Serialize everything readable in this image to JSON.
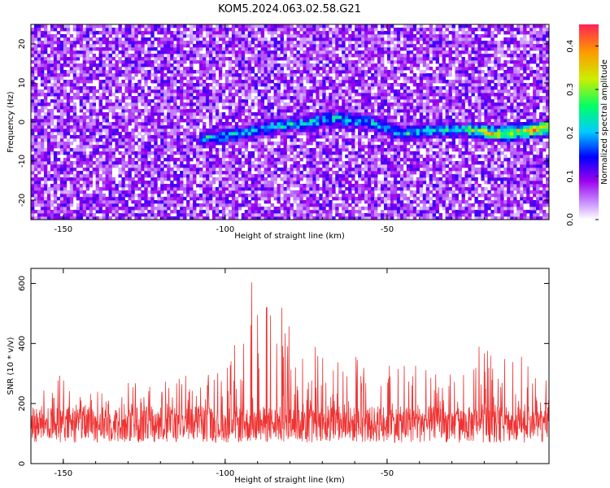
{
  "title": "KOM5.2024.063.02.58.G21",
  "chart_data": [
    {
      "type": "heatmap",
      "xlabel": "Height of straight line (km)",
      "ylabel": "Frequency (Hz)",
      "xlim": [
        -160,
        0
      ],
      "ylim": [
        -25,
        25
      ],
      "x_ticks": [
        -150,
        -100,
        -50
      ],
      "y_ticks": [
        -20,
        -10,
        0,
        10,
        20
      ],
      "colorbar": {
        "label": "Normalized spectral amplitude",
        "range": [
          0.0,
          0.45
        ],
        "ticks": [
          "0.0",
          "0.1",
          "0.2",
          "0.3",
          "0.4"
        ],
        "colors": [
          "#ffffff",
          "#9900ee",
          "#0000ff",
          "#00ccff",
          "#00ff66",
          "#ccee00",
          "#ff3333"
        ]
      },
      "ridge": {
        "description_points": [
          [
            -105,
            -4
          ],
          [
            -95,
            -3
          ],
          [
            -85,
            -1
          ],
          [
            -75,
            0
          ],
          [
            -65,
            1
          ],
          [
            -55,
            0
          ],
          [
            -45,
            -3
          ],
          [
            -35,
            -2
          ],
          [
            -25,
            -2
          ],
          [
            -15,
            -3
          ],
          [
            -5,
            -2
          ],
          [
            0,
            -1.5
          ]
        ],
        "peak_value": 0.45
      }
    },
    {
      "type": "line",
      "xlabel": "Height of straight line (km)",
      "ylabel": "SNR (10 * v/v)",
      "xlim": [
        -160,
        0
      ],
      "ylim": [
        0,
        650
      ],
      "x_ticks": [
        -150,
        -100,
        -50
      ],
      "y_ticks": [
        0,
        200,
        400,
        600
      ],
      "color": "#ee3333",
      "baseline_mean": 130,
      "envelope": [
        [
          -160,
          270
        ],
        [
          -150,
          300
        ],
        [
          -140,
          250
        ],
        [
          -130,
          270
        ],
        [
          -120,
          280
        ],
        [
          -110,
          300
        ],
        [
          -100,
          310
        ],
        [
          -95,
          470
        ],
        [
          -92,
          650
        ],
        [
          -90,
          540
        ],
        [
          -85,
          590
        ],
        [
          -80,
          460
        ],
        [
          -75,
          420
        ],
        [
          -70,
          400
        ],
        [
          -60,
          380
        ],
        [
          -50,
          370
        ],
        [
          -40,
          330
        ],
        [
          -30,
          300
        ],
        [
          -25,
          410
        ],
        [
          -20,
          380
        ],
        [
          -10,
          370
        ],
        [
          0,
          300
        ]
      ]
    }
  ]
}
